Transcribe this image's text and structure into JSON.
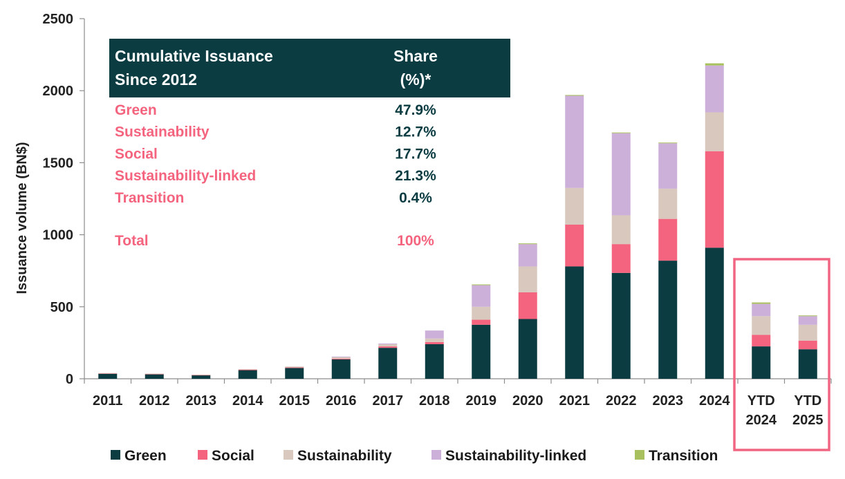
{
  "chart_data": {
    "type": "bar",
    "stacked": true,
    "ylabel": "Issuance volume (BN$)",
    "xlabel": "",
    "ylim": [
      0,
      2500
    ],
    "yticks": [
      0,
      500,
      1000,
      1500,
      2000,
      2500
    ],
    "categories": [
      [
        "2011"
      ],
      [
        "2012"
      ],
      [
        "2013"
      ],
      [
        "2014"
      ],
      [
        "2015"
      ],
      [
        "2016"
      ],
      [
        "2017"
      ],
      [
        "2018"
      ],
      [
        "2019"
      ],
      [
        "2020"
      ],
      [
        "2021"
      ],
      [
        "2022"
      ],
      [
        "2023"
      ],
      [
        "2024"
      ],
      [
        "YTD",
        "2024"
      ],
      [
        "YTD",
        "2025"
      ]
    ],
    "series": [
      {
        "name": "Green",
        "color": "#0b3c42",
        "values": [
          35,
          32,
          25,
          60,
          75,
          135,
          215,
          240,
          375,
          415,
          780,
          735,
          820,
          910,
          225,
          205
        ]
      },
      {
        "name": "Social",
        "color": "#f4647e",
        "values": [
          3,
          2,
          2,
          3,
          4,
          5,
          10,
          15,
          35,
          185,
          290,
          200,
          290,
          670,
          80,
          60
        ]
      },
      {
        "name": "Sustainability",
        "color": "#d8c8bd",
        "values": [
          2,
          2,
          2,
          4,
          6,
          12,
          15,
          25,
          90,
          180,
          255,
          200,
          210,
          270,
          130,
          110
        ]
      },
      {
        "name": "Sustainability-linked",
        "color": "#ccb0d9",
        "values": [
          0,
          0,
          0,
          0,
          0,
          2,
          5,
          55,
          150,
          155,
          640,
          570,
          315,
          325,
          85,
          60
        ]
      },
      {
        "name": "Transition",
        "color": "#a9c05e",
        "values": [
          0,
          0,
          0,
          0,
          0,
          0,
          0,
          0,
          5,
          5,
          5,
          5,
          5,
          15,
          10,
          5
        ]
      }
    ],
    "highlight_categories": [
      14,
      15
    ],
    "highlight_color": "#f06581",
    "legend_position": "bottom",
    "summary_table": {
      "header_fill": "#0b3c42",
      "label_color": "#f4647e",
      "value_color": "#0b3c42",
      "header_left": [
        "Cumulative Issuance",
        "Since 2012"
      ],
      "header_right": [
        "Share",
        "(%)*"
      ],
      "rows": [
        {
          "name": "Green",
          "share": "47.9%"
        },
        {
          "name": "Sustainability",
          "share": "12.7%"
        },
        {
          "name": "Social",
          "share": "17.7%"
        },
        {
          "name": "Sustainability-linked",
          "share": "21.3%"
        },
        {
          "name": "Transition",
          "share": "0.4%"
        }
      ],
      "total": {
        "name": "Total",
        "share": "100%"
      }
    }
  }
}
